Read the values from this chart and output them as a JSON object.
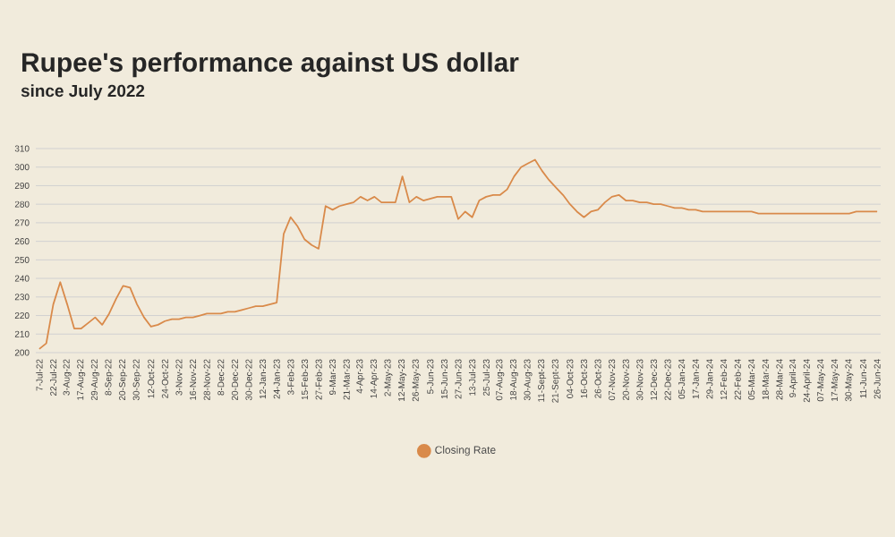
{
  "chart_data": {
    "type": "line",
    "title": "Rupee's performance against US dollar",
    "subtitle": "since July 2022",
    "categories": [
      "7-Jul-22",
      null,
      "22-Jul-22",
      null,
      "3-Aug-22",
      null,
      "17-Aug-22",
      null,
      "29-Aug-22",
      null,
      "8-Sep-22",
      null,
      "20-Sep-22",
      null,
      "30-Sep-22",
      null,
      "12-Oct-22",
      null,
      "24-Oct-22",
      null,
      "3-Nov-22",
      null,
      "16-Nov-22",
      null,
      "28-Nov-22",
      null,
      "8-Dec-22",
      null,
      "20-Dec-22",
      null,
      "30-Dec-22",
      null,
      "12-Jan-23",
      null,
      "24-Jan-23",
      null,
      "3-Feb-23",
      null,
      "15-Feb-23",
      null,
      "27-Feb-23",
      null,
      "9-Mar-23",
      null,
      "21-Mar-23",
      null,
      "4-Apr-23",
      null,
      "14-Apr-23",
      null,
      "2-May-23",
      null,
      "12-May-23",
      null,
      "26-May-23",
      null,
      "5-Jun-23",
      null,
      "15-Jun-23",
      null,
      "27-Jun-23",
      null,
      "13-Jul-23",
      null,
      "25-Jul-23",
      null,
      "07-Aug-23",
      null,
      "18-Aug-23",
      null,
      "30-Aug-23",
      null,
      "11-Sept-23",
      null,
      "21-Sept-23",
      null,
      "04-Oct-23",
      null,
      "16-Oct-23",
      null,
      "26-Oct-23",
      null,
      "07-Nov-23",
      null,
      "20-Nov-23",
      null,
      "30-Nov-23",
      null,
      "12-Dec-23",
      null,
      "22-Dec-23",
      null,
      "05-Jan-24",
      null,
      "17-Jan-24",
      null,
      "29-Jan-24",
      null,
      "12-Feb-24",
      null,
      "22-Feb-24",
      null,
      "05-Mar-24",
      null,
      "18-Mar-24",
      null,
      "28-Mar-24",
      null,
      "9-April-24",
      null,
      "24-April-24",
      null,
      "07-May-24",
      null,
      "17-May-24",
      null,
      "30-May-24",
      null,
      "11-Jun-24",
      null,
      "26-Jun-24"
    ],
    "series": [
      {
        "name": "Closing Rate",
        "color": "#d98a4a",
        "values": [
          202,
          205,
          226,
          238,
          226,
          213,
          213,
          216,
          219,
          215,
          221,
          229,
          236,
          235,
          226,
          219,
          214,
          215,
          217,
          218,
          218,
          219,
          219,
          220,
          221,
          221,
          221,
          222,
          222,
          223,
          224,
          225,
          225,
          226,
          227,
          264,
          273,
          268,
          261,
          258,
          256,
          279,
          277,
          279,
          280,
          281,
          284,
          282,
          284,
          281,
          281,
          281,
          295,
          281,
          284,
          282,
          283,
          284,
          284,
          284,
          272,
          276,
          273,
          282,
          284,
          285,
          285,
          288,
          295,
          300,
          302,
          304,
          298,
          293,
          289,
          285,
          280,
          276,
          273,
          276,
          277,
          281,
          284,
          285,
          282,
          282,
          281,
          281,
          280,
          280,
          279,
          278,
          278,
          277,
          277,
          276,
          276,
          276,
          276,
          276,
          276,
          276,
          276,
          275,
          275,
          275,
          275,
          275,
          275,
          275,
          275,
          275,
          275,
          275,
          275,
          275,
          275,
          276,
          276,
          276,
          276
        ]
      }
    ],
    "ylim": [
      200,
      310
    ],
    "yticks": [
      200,
      210,
      220,
      230,
      240,
      250,
      260,
      270,
      280,
      290,
      300,
      310
    ],
    "grid": "y",
    "legend": "bottom"
  }
}
